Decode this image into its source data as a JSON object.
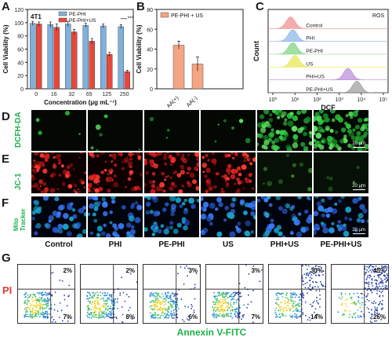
{
  "panels": {
    "A": "A",
    "B": "B",
    "C": "C",
    "D": "D",
    "E": "E",
    "F": "F",
    "G": "G"
  },
  "chart_data": [
    {
      "panel": "A",
      "type": "bar",
      "inset_label": "4T1",
      "xlabel": "Concentration (μg mL⁻¹)",
      "ylabel": "Cell Viability (%)",
      "ylim": [
        0,
        120
      ],
      "yticks": [
        0,
        20,
        40,
        60,
        80,
        100,
        120
      ],
      "categories": [
        "0",
        "16",
        "32",
        "65",
        "125",
        "250"
      ],
      "series": [
        {
          "name": "PE-PHI",
          "color": "#7fb1dc",
          "values": [
            99,
            97,
            98,
            96,
            95,
            94
          ],
          "errors": [
            3,
            4,
            4,
            3,
            3,
            3
          ]
        },
        {
          "name": "PE-PHI+US",
          "color": "#e8473b",
          "values": [
            98,
            93,
            86,
            72,
            52,
            26
          ],
          "errors": [
            3,
            5,
            4,
            4,
            3,
            2
          ]
        }
      ],
      "significance": "***"
    },
    {
      "panel": "B",
      "type": "bar",
      "legend": "PE-PHI + US",
      "ylabel": "Cell Viability (%)",
      "ylim": [
        0,
        80
      ],
      "yticks": [
        0,
        20,
        40,
        60,
        80
      ],
      "categories": [
        "AA(+)",
        "AA(-)"
      ],
      "values": [
        44,
        25
      ],
      "errors": [
        4,
        7
      ],
      "color": "#f4a582"
    },
    {
      "panel": "C",
      "type": "area",
      "title": "ROS",
      "xlabel": "DCF",
      "ylabel": "Count",
      "xtick_labels": [
        "10⁰",
        "10¹",
        "10²",
        "10³",
        "10⁴",
        "10⁵"
      ],
      "series": [
        {
          "name": "Control",
          "color": "#f08a8a",
          "peak_log": 0.8
        },
        {
          "name": "PHI",
          "color": "#8ab4ea",
          "peak_log": 0.9
        },
        {
          "name": "PE-PHI",
          "color": "#7cd37c",
          "peak_log": 0.9
        },
        {
          "name": "US",
          "color": "#e6e64a",
          "peak_log": 1.0
        },
        {
          "name": "PHI+US",
          "color": "#b88ad8",
          "peak_log": 3.4
        },
        {
          "name": "PE-PHI+US",
          "color": "#9a9a9a",
          "peak_log": 3.8
        }
      ]
    }
  ],
  "microscopy": {
    "rows": [
      {
        "label": "DCFH-DA",
        "scale": "20 μm"
      },
      {
        "label": "JC-1",
        "scale": "20 μm"
      },
      {
        "label": "Mito Tracker",
        "label_line1": "Mito",
        "label_line2": "Tracker",
        "scale": "20 μm"
      }
    ],
    "groups": [
      "Control",
      "PHI",
      "PE-PHI",
      "US",
      "PHI+US",
      "PE-PHI+US"
    ]
  },
  "flow": {
    "ylabel": "PI",
    "xlabel": "Annexin V-FITC",
    "plots": [
      {
        "ur": "2%",
        "lr": "7%"
      },
      {
        "ur": "2%",
        "lr": "8%"
      },
      {
        "ur": "3%",
        "lr": "6%"
      },
      {
        "ur": "3%",
        "lr": "7%"
      },
      {
        "ur": "30%",
        "lr": "14%"
      },
      {
        "ur": "45%",
        "lr": "26%"
      }
    ]
  }
}
